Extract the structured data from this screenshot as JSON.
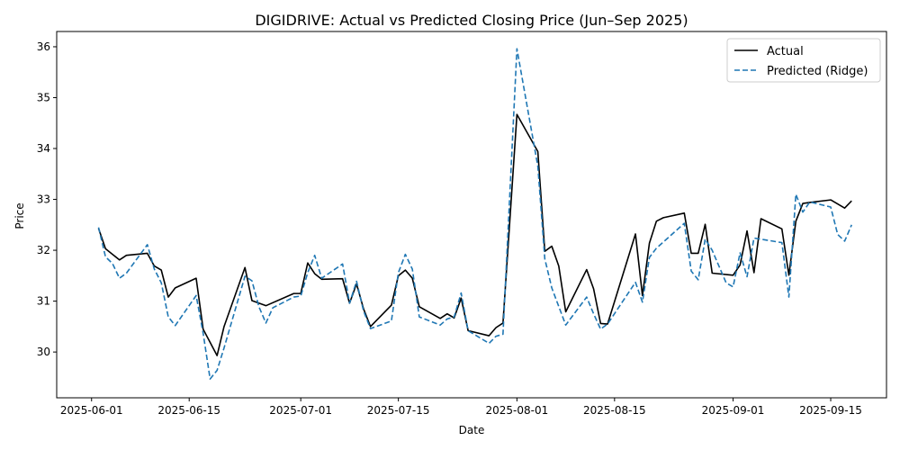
{
  "chart_data": {
    "type": "line",
    "title": "DIGIDRIVE: Actual vs Predicted Closing Price (Jun–Sep 2025)",
    "xlabel": "Date",
    "ylabel": "Price",
    "x_range": [
      "2025-05-27",
      "2025-09-23"
    ],
    "ylim": [
      29.1,
      36.3
    ],
    "grid": false,
    "legend_position": "upper-right",
    "x_ticks": [
      "2025-06-01",
      "2025-06-15",
      "2025-07-01",
      "2025-07-15",
      "2025-08-01",
      "2025-08-15",
      "2025-09-01",
      "2025-09-15"
    ],
    "y_ticks": [
      30,
      31,
      32,
      33,
      34,
      35,
      36
    ],
    "series": [
      {
        "name": "Actual",
        "color": "#000000",
        "style": "solid",
        "points": [
          [
            "2025-06-02",
            32.43
          ],
          [
            "2025-06-03",
            32.03
          ],
          [
            "2025-06-05",
            31.81
          ],
          [
            "2025-06-06",
            31.9
          ],
          [
            "2025-06-09",
            31.94
          ],
          [
            "2025-06-10",
            31.69
          ],
          [
            "2025-06-11",
            31.61
          ],
          [
            "2025-06-12",
            31.08
          ],
          [
            "2025-06-13",
            31.26
          ],
          [
            "2025-06-16",
            31.45
          ],
          [
            "2025-06-17",
            30.45
          ],
          [
            "2025-06-19",
            29.93
          ],
          [
            "2025-06-20",
            30.5
          ],
          [
            "2025-06-23",
            31.66
          ],
          [
            "2025-06-24",
            31.01
          ],
          [
            "2025-06-26",
            30.91
          ],
          [
            "2025-06-30",
            31.15
          ],
          [
            "2025-07-01",
            31.15
          ],
          [
            "2025-07-02",
            31.75
          ],
          [
            "2025-07-03",
            31.54
          ],
          [
            "2025-07-04",
            31.43
          ],
          [
            "2025-07-07",
            31.44
          ],
          [
            "2025-07-08",
            30.96
          ],
          [
            "2025-07-09",
            31.34
          ],
          [
            "2025-07-10",
            30.85
          ],
          [
            "2025-07-11",
            30.5
          ],
          [
            "2025-07-14",
            30.92
          ],
          [
            "2025-07-15",
            31.5
          ],
          [
            "2025-07-16",
            31.61
          ],
          [
            "2025-07-17",
            31.45
          ],
          [
            "2025-07-18",
            30.89
          ],
          [
            "2025-07-21",
            30.66
          ],
          [
            "2025-07-22",
            30.75
          ],
          [
            "2025-07-23",
            30.67
          ],
          [
            "2025-07-24",
            31.06
          ],
          [
            "2025-07-25",
            30.42
          ],
          [
            "2025-07-28",
            30.32
          ],
          [
            "2025-07-29",
            30.48
          ],
          [
            "2025-07-30",
            30.57
          ],
          [
            "2025-08-01",
            34.67
          ],
          [
            "2025-08-04",
            33.94
          ],
          [
            "2025-08-05",
            31.98
          ],
          [
            "2025-08-06",
            32.08
          ],
          [
            "2025-08-07",
            31.69
          ],
          [
            "2025-08-08",
            30.79
          ],
          [
            "2025-08-11",
            31.62
          ],
          [
            "2025-08-12",
            31.24
          ],
          [
            "2025-08-13",
            30.56
          ],
          [
            "2025-08-14",
            30.55
          ],
          [
            "2025-08-18",
            32.32
          ],
          [
            "2025-08-19",
            31.11
          ],
          [
            "2025-08-20",
            32.14
          ],
          [
            "2025-08-21",
            32.57
          ],
          [
            "2025-08-22",
            32.64
          ],
          [
            "2025-08-25",
            32.73
          ],
          [
            "2025-08-26",
            31.94
          ],
          [
            "2025-08-27",
            31.94
          ],
          [
            "2025-08-28",
            32.51
          ],
          [
            "2025-08-29",
            31.55
          ],
          [
            "2025-09-01",
            31.51
          ],
          [
            "2025-09-02",
            31.71
          ],
          [
            "2025-09-03",
            32.38
          ],
          [
            "2025-09-04",
            31.56
          ],
          [
            "2025-09-05",
            32.62
          ],
          [
            "2025-09-08",
            32.42
          ],
          [
            "2025-09-09",
            31.51
          ],
          [
            "2025-09-10",
            32.57
          ],
          [
            "2025-09-11",
            32.92
          ],
          [
            "2025-09-12",
            32.94
          ],
          [
            "2025-09-15",
            32.99
          ],
          [
            "2025-09-17",
            32.83
          ],
          [
            "2025-09-18",
            32.97
          ]
        ]
      },
      {
        "name": "Predicted (Ridge)",
        "color": "#1f77b4",
        "style": "dashed",
        "points": [
          [
            "2025-06-02",
            32.45
          ],
          [
            "2025-06-03",
            31.87
          ],
          [
            "2025-06-04",
            31.74
          ],
          [
            "2025-06-05",
            31.45
          ],
          [
            "2025-06-06",
            31.55
          ],
          [
            "2025-06-09",
            32.11
          ],
          [
            "2025-06-10",
            31.63
          ],
          [
            "2025-06-11",
            31.36
          ],
          [
            "2025-06-12",
            30.69
          ],
          [
            "2025-06-13",
            30.52
          ],
          [
            "2025-06-16",
            31.11
          ],
          [
            "2025-06-17",
            30.37
          ],
          [
            "2025-06-18",
            29.47
          ],
          [
            "2025-06-19",
            29.64
          ],
          [
            "2025-06-20",
            30.08
          ],
          [
            "2025-06-23",
            31.49
          ],
          [
            "2025-06-24",
            31.4
          ],
          [
            "2025-06-25",
            30.89
          ],
          [
            "2025-06-26",
            30.57
          ],
          [
            "2025-06-27",
            30.87
          ],
          [
            "2025-06-30",
            31.08
          ],
          [
            "2025-07-01",
            31.1
          ],
          [
            "2025-07-02",
            31.56
          ],
          [
            "2025-07-03",
            31.9
          ],
          [
            "2025-07-04",
            31.45
          ],
          [
            "2025-07-07",
            31.73
          ],
          [
            "2025-07-08",
            30.96
          ],
          [
            "2025-07-09",
            31.39
          ],
          [
            "2025-07-10",
            30.81
          ],
          [
            "2025-07-11",
            30.46
          ],
          [
            "2025-07-14",
            30.61
          ],
          [
            "2025-07-15",
            31.56
          ],
          [
            "2025-07-16",
            31.92
          ],
          [
            "2025-07-17",
            31.63
          ],
          [
            "2025-07-18",
            30.69
          ],
          [
            "2025-07-21",
            30.53
          ],
          [
            "2025-07-22",
            30.65
          ],
          [
            "2025-07-23",
            30.69
          ],
          [
            "2025-07-24",
            31.16
          ],
          [
            "2025-07-25",
            30.42
          ],
          [
            "2025-07-28",
            30.17
          ],
          [
            "2025-07-29",
            30.31
          ],
          [
            "2025-07-30",
            30.35
          ],
          [
            "2025-08-01",
            35.96
          ],
          [
            "2025-08-04",
            33.65
          ],
          [
            "2025-08-05",
            31.83
          ],
          [
            "2025-08-06",
            31.26
          ],
          [
            "2025-08-08",
            30.53
          ],
          [
            "2025-08-11",
            31.08
          ],
          [
            "2025-08-12",
            30.75
          ],
          [
            "2025-08-13",
            30.45
          ],
          [
            "2025-08-14",
            30.55
          ],
          [
            "2025-08-18",
            31.37
          ],
          [
            "2025-08-19",
            30.98
          ],
          [
            "2025-08-20",
            31.86
          ],
          [
            "2025-08-21",
            32.04
          ],
          [
            "2025-08-25",
            32.53
          ],
          [
            "2025-08-26",
            31.59
          ],
          [
            "2025-08-27",
            31.42
          ],
          [
            "2025-08-28",
            32.22
          ],
          [
            "2025-08-29",
            32.0
          ],
          [
            "2025-08-31",
            31.36
          ],
          [
            "2025-09-01",
            31.28
          ],
          [
            "2025-09-02",
            31.95
          ],
          [
            "2025-09-03",
            31.48
          ],
          [
            "2025-09-04",
            32.24
          ],
          [
            "2025-09-08",
            32.15
          ],
          [
            "2025-09-09",
            31.08
          ],
          [
            "2025-09-10",
            33.1
          ],
          [
            "2025-09-11",
            32.75
          ],
          [
            "2025-09-12",
            32.95
          ],
          [
            "2025-09-15",
            32.85
          ],
          [
            "2025-09-16",
            32.31
          ],
          [
            "2025-09-17",
            32.18
          ],
          [
            "2025-09-18",
            32.5
          ]
        ]
      }
    ]
  }
}
